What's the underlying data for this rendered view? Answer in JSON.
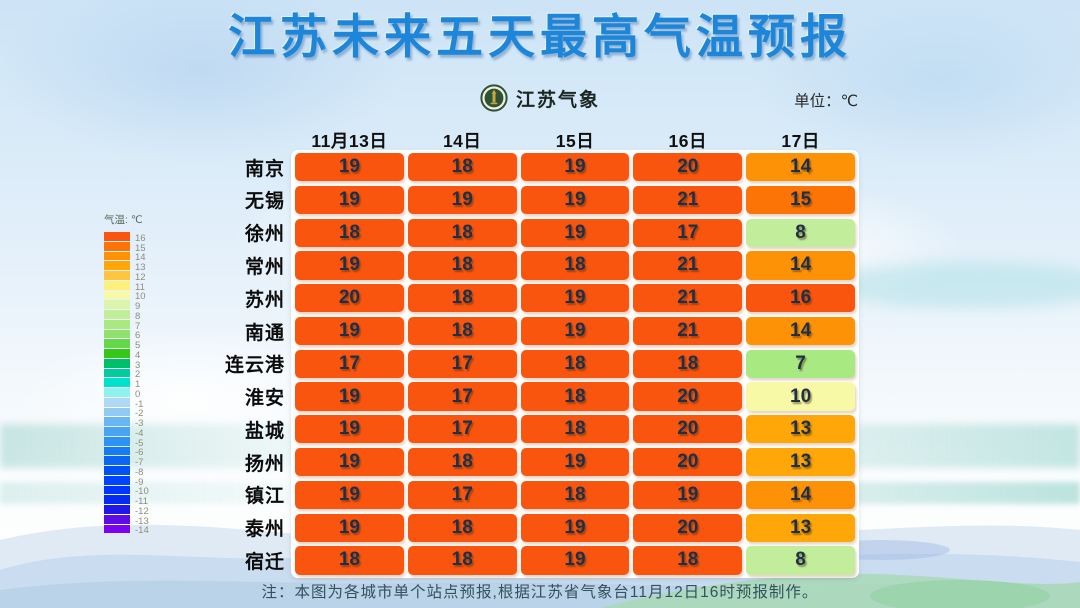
{
  "page": {
    "brand": {
      "logo_icon": "jiangsu-meteorology-emblem",
      "name": "江苏气象"
    },
    "unit_label": "单位：℃",
    "note": "注：本图为各城市单个站点预报,根据江苏省气象台11月12日16时预报制作。"
  },
  "colors": {
    "title_blue": "#1e86d8",
    "hot_cell_orange": "#fa550e",
    "value_text": "#1e2f48"
  },
  "legend": {
    "title": "气温: ℃",
    "entries": [
      {
        "label": "16",
        "color": "#fa550e"
      },
      {
        "label": "15",
        "color": "#fb7405"
      },
      {
        "label": "14",
        "color": "#fd9206"
      },
      {
        "label": "13",
        "color": "#ffa608"
      },
      {
        "label": "12",
        "color": "#ffc53e"
      },
      {
        "label": "11",
        "color": "#fdf07c"
      },
      {
        "label": "10",
        "color": "#f7f9a6"
      },
      {
        "label": "9",
        "color": "#dcf5ad"
      },
      {
        "label": "8",
        "color": "#c2ee9b"
      },
      {
        "label": "7",
        "color": "#a9e982"
      },
      {
        "label": "6",
        "color": "#8fe26e"
      },
      {
        "label": "5",
        "color": "#66d74a"
      },
      {
        "label": "4",
        "color": "#35c917"
      },
      {
        "label": "3",
        "color": "#00bf6a"
      },
      {
        "label": "2",
        "color": "#00ce9d"
      },
      {
        "label": "1",
        "color": "#00e2cb"
      },
      {
        "label": "0",
        "color": "#8ff1f0"
      },
      {
        "label": "-1",
        "color": "#add9f6"
      },
      {
        "label": "-2",
        "color": "#91cbf3"
      },
      {
        "label": "-3",
        "color": "#69b7f2"
      },
      {
        "label": "-4",
        "color": "#4aa4f2"
      },
      {
        "label": "-5",
        "color": "#2c93f2"
      },
      {
        "label": "-6",
        "color": "#177bf2"
      },
      {
        "label": "-7",
        "color": "#0b67f2"
      },
      {
        "label": "-8",
        "color": "#0053f2"
      },
      {
        "label": "-9",
        "color": "#0044ff"
      },
      {
        "label": "-10",
        "color": "#0035ff"
      },
      {
        "label": "-11",
        "color": "#052bf1"
      },
      {
        "label": "-12",
        "color": "#2017e8"
      },
      {
        "label": "-13",
        "color": "#5d0ce8"
      },
      {
        "label": "-14",
        "color": "#7b03f2"
      }
    ]
  },
  "chart_data": {
    "type": "table",
    "title": "江苏未来五天最高气温预报",
    "unit": "℃",
    "columns": [
      "11月13日",
      "14日",
      "15日",
      "16日",
      "17日"
    ],
    "rows": [
      {
        "city": "南京",
        "values": [
          19,
          18,
          19,
          20,
          14
        ]
      },
      {
        "city": "无锡",
        "values": [
          19,
          19,
          19,
          21,
          15
        ]
      },
      {
        "city": "徐州",
        "values": [
          18,
          18,
          19,
          17,
          8
        ]
      },
      {
        "city": "常州",
        "values": [
          19,
          18,
          18,
          21,
          14
        ]
      },
      {
        "city": "苏州",
        "values": [
          20,
          18,
          19,
          21,
          16
        ]
      },
      {
        "city": "南通",
        "values": [
          19,
          18,
          19,
          21,
          14
        ]
      },
      {
        "city": "连云港",
        "values": [
          17,
          17,
          18,
          18,
          7
        ]
      },
      {
        "city": "淮安",
        "values": [
          19,
          17,
          18,
          20,
          10
        ]
      },
      {
        "city": "盐城",
        "values": [
          19,
          17,
          18,
          20,
          13
        ]
      },
      {
        "city": "扬州",
        "values": [
          19,
          18,
          19,
          20,
          13
        ]
      },
      {
        "city": "镇江",
        "values": [
          19,
          17,
          18,
          19,
          14
        ]
      },
      {
        "city": "泰州",
        "values": [
          19,
          18,
          19,
          20,
          13
        ]
      },
      {
        "city": "宿迁",
        "values": [
          18,
          18,
          19,
          18,
          8
        ]
      }
    ],
    "legend_position": "left",
    "color_encoding": "cell background encodes temperature using legend scale, values above 16 use the 16 color"
  }
}
